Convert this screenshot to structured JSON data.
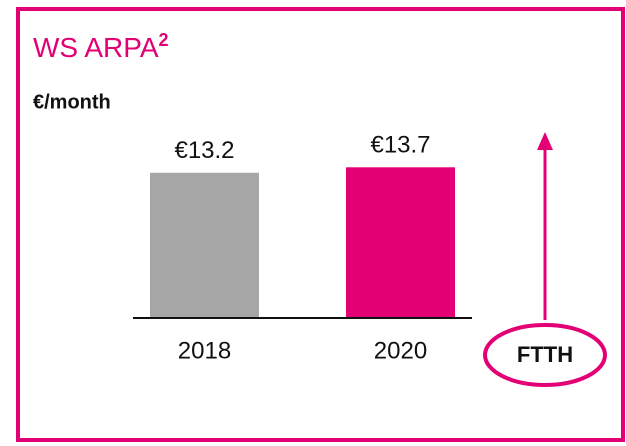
{
  "chart_data": {
    "type": "bar",
    "title": "WS ARPA",
    "title_superscript": "2",
    "subtitle": "€/month",
    "categories": [
      "2018",
      "2020"
    ],
    "values": [
      13.2,
      13.7
    ],
    "value_labels": [
      "€13.2",
      "€13.7"
    ],
    "colors": [
      "#a6a6a6",
      "#e20074"
    ],
    "ylim": [
      0,
      14
    ],
    "annotation": "FTTH"
  }
}
